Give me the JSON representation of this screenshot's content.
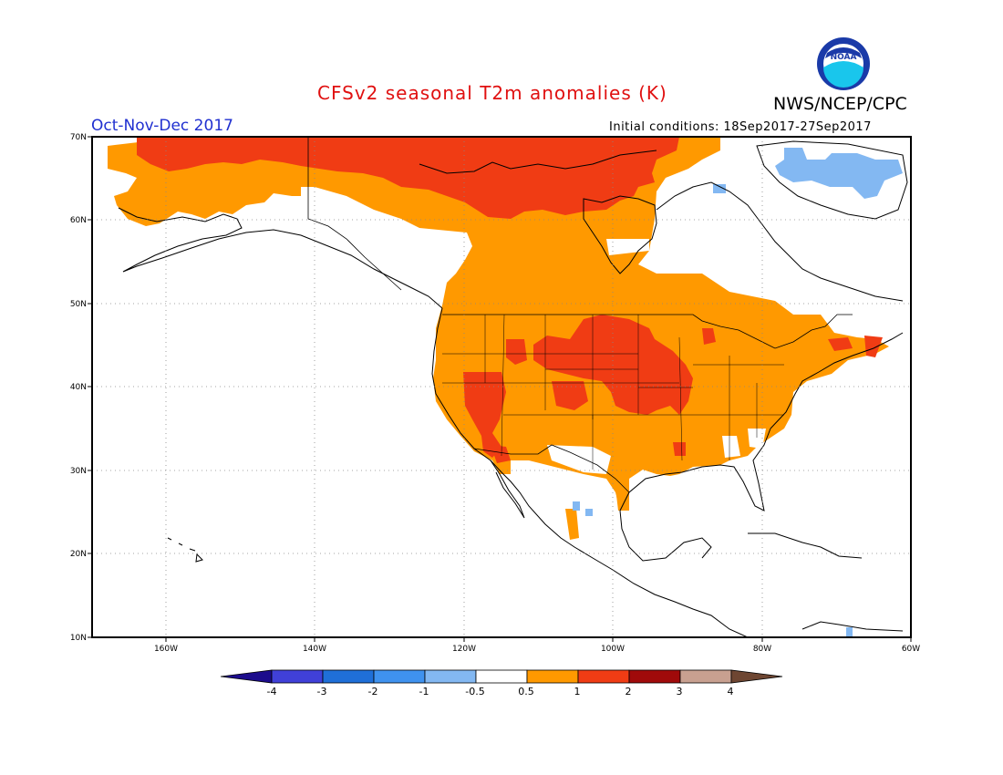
{
  "header": {
    "title": "CFSv2 seasonal T2m anomalies (K)",
    "agency": "NWS/NCEP/CPC",
    "season": "Oct-Nov-Dec 2017",
    "initial_conditions": "Initial conditions: 18Sep2017-27Sep2017",
    "logo_text": "NOAA"
  },
  "map": {
    "lat_labels": [
      "70N",
      "60N",
      "50N",
      "40N",
      "30N",
      "20N",
      "10N"
    ],
    "lon_labels": [
      "160W",
      "140W",
      "120W",
      "100W",
      "80W",
      "60W"
    ],
    "grid": true
  },
  "legend": {
    "labels": [
      "-4",
      "-3",
      "-2",
      "-1",
      "-0.5",
      "0.5",
      "1",
      "2",
      "3",
      "4"
    ],
    "colors": [
      "#1c0c8c",
      "#4040d8",
      "#1f6fd8",
      "#3f92ef",
      "#83b8f2",
      "#ffffff",
      "#ff9900",
      "#f03c14",
      "#a00a0a",
      "#c8a090",
      "#6e4632"
    ]
  },
  "colors": {
    "land_outline": "#000000",
    "anom_0_5_to_1": "#ff9900",
    "anom_1_to_2": "#f03c14",
    "anom_neg_1_to_neg_0_5": "#83b8f2"
  }
}
